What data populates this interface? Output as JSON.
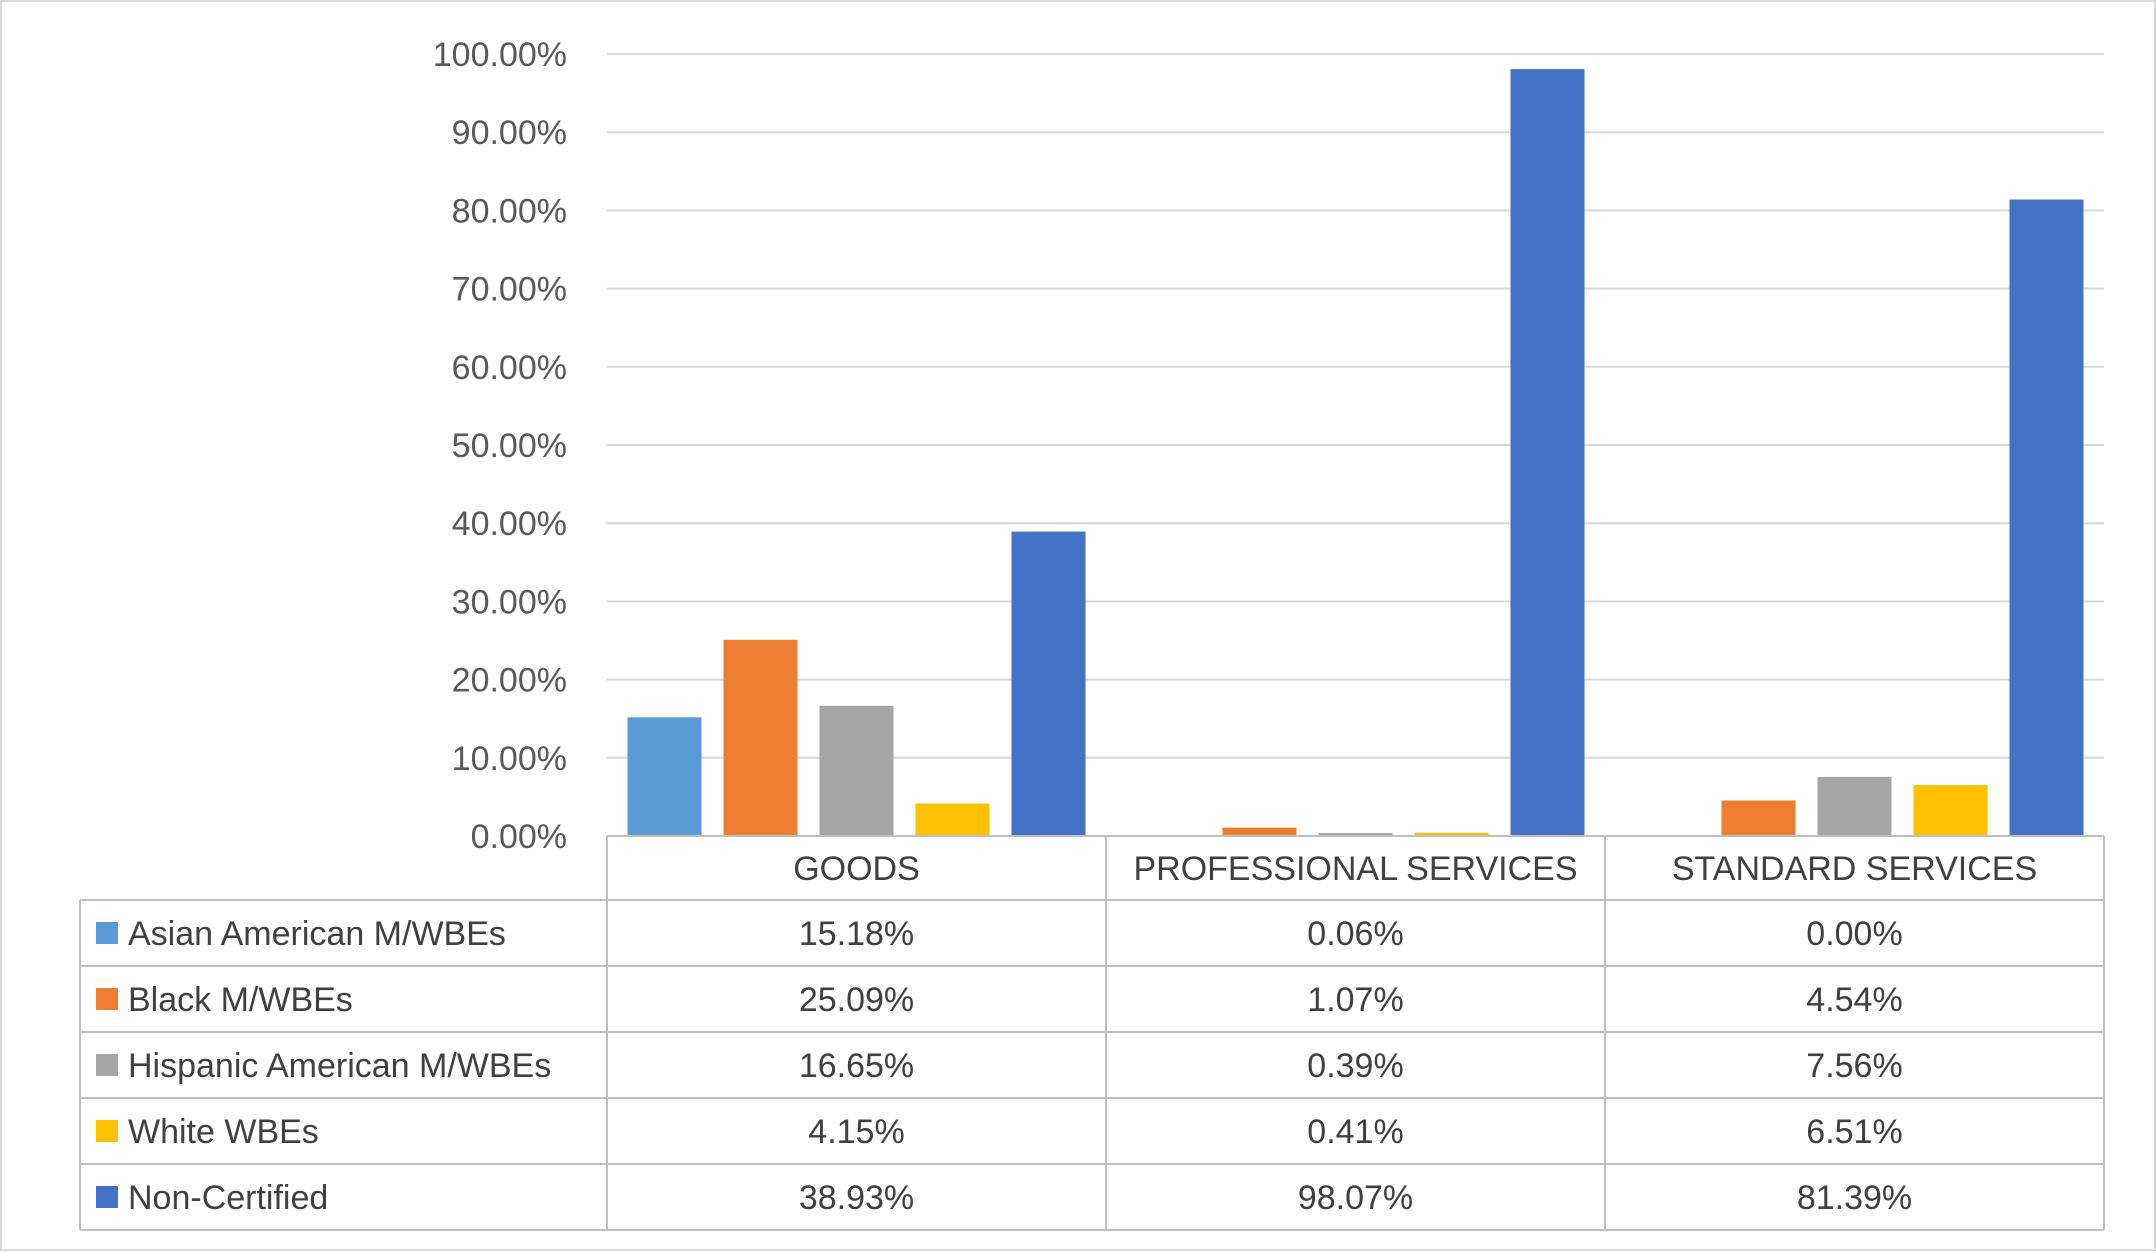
{
  "chart_data": {
    "type": "bar",
    "title": "",
    "xlabel": "",
    "ylabel": "",
    "ylim": [
      0,
      100
    ],
    "y_tick_step": 10,
    "y_tick_format": "percent-2-decimals",
    "y_ticks": [
      "0.00%",
      "10.00%",
      "20.00%",
      "30.00%",
      "40.00%",
      "50.00%",
      "60.00%",
      "70.00%",
      "80.00%",
      "90.00%",
      "100.00%"
    ],
    "grid": true,
    "legend": "data-table-below",
    "categories": [
      "GOODS",
      "PROFESSIONAL SERVICES",
      "STANDARD SERVICES"
    ],
    "series": [
      {
        "name": "Asian American M/WBEs",
        "color": "#5B9BD5",
        "values": [
          15.18,
          0.06,
          0.0
        ],
        "labels": [
          "15.18%",
          "0.06%",
          "0.00%"
        ]
      },
      {
        "name": "Black M/WBEs",
        "color": "#ED7D31",
        "values": [
          25.09,
          1.07,
          4.54
        ],
        "labels": [
          "25.09%",
          "1.07%",
          "4.54%"
        ]
      },
      {
        "name": "Hispanic American M/WBEs",
        "color": "#A5A5A5",
        "values": [
          16.65,
          0.39,
          7.56
        ],
        "labels": [
          "16.65%",
          "0.39%",
          "7.56%"
        ]
      },
      {
        "name": "White WBEs",
        "color": "#FFC000",
        "values": [
          4.15,
          0.41,
          6.51
        ],
        "labels": [
          "4.15%",
          "0.41%",
          "6.51%"
        ]
      },
      {
        "name": "Non-Certified",
        "color": "#4472C4",
        "values": [
          38.93,
          98.07,
          81.39
        ],
        "labels": [
          "38.93%",
          "98.07%",
          "81.39%"
        ]
      }
    ],
    "colors": {
      "gridline": "#d9d9d9",
      "table_border": "#bfbfbf",
      "tick_text": "#595959",
      "table_text": "#404040"
    }
  }
}
